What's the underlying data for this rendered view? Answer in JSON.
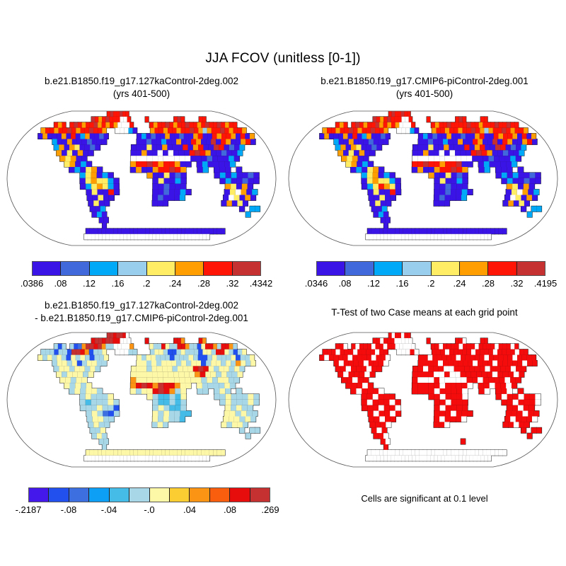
{
  "chart_data": {
    "type": "heatmap",
    "figure_title": "JJA FCOV (unitless [0-1])",
    "grid_note": "24 rows x 48 cols, equirectangular lat/lon cells, '.'=ocean, 'w'=land no-data(white), other chars keyed to palettes",
    "palettes": {
      "fcov": {
        "v": "#3A14E6",
        "b": "#4169DC",
        "c": "#00A8F8",
        "l": "#99CFEC",
        "y": "#FFED66",
        "o": "#FF9E00",
        "r": "#FF1505",
        "d": "#C53030"
      },
      "diff": {
        "V": "#4417EA",
        "B": "#2150EE",
        "m": "#3D6FE0",
        "a": "#0D9FF5",
        "s": "#45BCE8",
        "p": "#A8D8E8",
        "Y": "#FDF7A8",
        "g": "#FCCC33",
        "O": "#FB9415",
        "n": "#F85E0D",
        "R": "#E80D0D",
        "D": "#C53030"
      },
      "ttest": {
        "R": "#F40B0B"
      }
    },
    "panels": [
      {
        "position": "top-left",
        "title": "b.e21.B1850.f19_g17.127kaControl-2deg.002",
        "subtitle": "(yrs 401-500)",
        "value_range": [
          0.0386,
          0.4342
        ],
        "palette_key": "fcov",
        "colorbar": {
          "labels": [
            ".0386",
            ".08",
            ".12",
            ".16",
            ".2",
            ".24",
            ".28",
            ".32",
            ".4342"
          ],
          "colors": [
            "#3A14E6",
            "#4169DC",
            "#00A8F8",
            "#99CFEC",
            "#FFED66",
            "#FF9E00",
            "#FF1505",
            "#C53030"
          ]
        },
        "grid": [
          ".............rdrrdrr............................",
          "..........drordrrrwwr....r.......rdr....rr......",
          "..ror.rdrorrdororowwwr....rorrdrorrdrrordrrdrorr",
          ".orrorrdrorrdrro..wwwcv...orrorrorrdrolorrdrorro",
          "..vovvvovrvcovvbv......vcvbvvovvbvvorvvrorrovrvo",
          "......cvvovvvbvvv......vvbvvcvvovvrovvdvrovvorv.",
          ".......covoyvvbv......vvvyvvovvvrvorvvdrvbvc....",
          "........ovyvovv.......vvovvwvwvvvrdrovvbvvc.....",
          ".........oyovv........wwwwwwwwwwwvvvbvvvcv......",
          "..........yovcv.......orrdrorrovv.vcvvvvc.......",
          "...........vcvyov.....vovvorrdro..vc.vvv.v......",
          ".............cyovcv......ovvyvbv.....vcvcvvbv...",
          ".............vyoyycv......vyvvcv......vcvvbvv...",
          ".............vcyoycv......vvbvvv.......oyvov....",
          "..............vyvvrv......vvbvvcv......vywovc...",
          "..............vvyvv.......vbvvvc.......vwyvov...",
          "..............vyvv........vvv..........vovyv....",
          "..............vvc..........................v.cc.",
          "..............vcv............................c..",
          "...............vv...............................",
          "...............v................................",
          "..........vvvvvvvvvvvvvvvvvvvvvvvvvvvvvvvvvvv...",
          "........wwwwwwwwwwwwwwwwwwwwwwwwwwwwwwwwwww.....",
          "................................................"
        ]
      },
      {
        "position": "top-right",
        "title": "b.e21.B1850.f19_g17.CMIP6-piControl-2deg.001",
        "subtitle": "(yrs 401-500)",
        "value_range": [
          0.0346,
          0.4195
        ],
        "palette_key": "fcov",
        "colorbar": {
          "labels": [
            ".0346",
            ".08",
            ".12",
            ".16",
            ".2",
            ".24",
            ".28",
            ".32",
            ".4195"
          ],
          "colors": [
            "#3A14E6",
            "#4169DC",
            "#00A8F8",
            "#99CFEC",
            "#FFED66",
            "#FF9E00",
            "#FF1505",
            "#C53030"
          ]
        },
        "grid": [
          ".............rdrrdrr............................",
          "..........drordrrrwwr....r.......rdr....rr......",
          "..ror.rdrorrdororowwwr....rorrdrrrrdrrorrrdrrdrr",
          ".orrorrdrorrdrro..wwwcv...orrorrorrdrolorrdrorro",
          "..vovvvovrvcovvbv......vcvbvvovvbvvorvvrorrovrvo",
          "......cvvovvvbvvv......vvbvvcvvovvrovvdvrovvorv.",
          ".......covoyvvbv......vvvyvvovvvrvorvvdrvbvc....",
          "........ovyvovv.......vvovvwvwvvvrdrovvbvvc.....",
          ".........oyovv........wwwwwwwwwwwvvvbvvvcv......",
          "..........yovcv.......rrdrrorrdvv.vcvvvvc.......",
          "...........vcvyov.....vovvorrdro..vc.vvv.v......",
          ".............cyovcv......ovvyvbv.....vcvcvvbv...",
          ".............vyoyycv......vyvvcv......vcvvbvv...",
          ".............vcyroyv......vvbvvv.......oyvov....",
          "..............vyvvrv......vvbvvcv......vywovc...",
          "..............vvyvv.......vbvvvc.......vwyvov...",
          "..............vyvv........vvv..........vovyv....",
          "..............vvc..........................v.cc.",
          "..............vcv............................c..",
          "...............vv...............................",
          "...............v................................",
          "..........vvvvvvvvvvvvvvvvvvvvvvvvvvvvvvvvvvv...",
          "........wwwwwwwwwwwwwwwwwwwwwwwwwwwwwwwwwww.....",
          "................................................"
        ]
      },
      {
        "position": "bottom-left",
        "title": "b.e21.B1850.f19_g17.127kaControl-2deg.002",
        "subtitle": "- b.e21.B1850.f19_g17.CMIP6-piControl-2deg.001",
        "value_range": [
          -0.2187,
          0.269
        ],
        "palette_key": "diff",
        "colorbar": {
          "labels": [
            "-.2187",
            "-.08",
            "-.04",
            "-.0",
            ".04",
            ".08",
            ".269"
          ],
          "colors": [
            "#4417EA",
            "#2150EE",
            "#3D6FE0",
            "#0D9FF5",
            "#45BCE8",
            "#A8D8E8",
            "#FDF7A8",
            "#FCCC33",
            "#FB9415",
            "#F85E0D",
            "#E80D0D",
            "#C53030"
          ]
        },
        "grid": [
          ".............DDRDDRw............................",
          "..........RDDRDDRRwww....R.......RRO....RO......",
          "..pBp.pBmODDRDOppwwwwO....YppRYppRROppBYRROpRROp",
          ".pppBppBDDROBppY..wwwpp...pYYpBBpYpppBYYpRRYpBpY",
          "..YpYpYpBYpYpBppY......YpYYpppBpppYpBBpYpppYBppY",
          "......pYYpYBpYYpp......YYpYpYYYpYpYYBpYYpYpOYpY.",
          ".......pYYpYYpYp......YYYpYYYYpYYYRDRYpYYpYp....",
          "........YpYYYpY.......YYYYYYYYYYYYORYYpYppY.....",
          ".........YYpYY........OYYYYYYYYYYYYpYpYYpp......",
          "..........YpYpY.......ORDRODRROYY.YppppYp.......",
          "...........pYpYYp.....YpYYRDROpY..pp.pYp.p......",
          ".............pYpppY......YpsspsY.....ppYpppYp...",
          ".............pspppYp......psspsp......pYpppYp...",
          ".............pppYppB......pYpssp.......YpYpp....",
          "..............pYpmBp......YpYppss......YYpYpp...",
          "..............pYYpp.......YpYpps.......YYYpYp...",
          "..............pYpp........pYp..........YpYYp....",
          "..............ppY..........................p.pp.",
          "..............pYp............................p..",
          "...............pp...............................",
          "...............p................................",
          "..........YYYYYYYYYYYYYYYYYYYYYYYYYYYYYYYYYYY...",
          "........wwwwwwwwwwwwwwwwwwwwwwwwwwwwwwwwwww.....",
          "................................................"
        ]
      },
      {
        "position": "bottom-right",
        "title": "T-Test of two Case means at each grid point",
        "subtitle": "",
        "caption": "Cells are significant at 0.1 level",
        "palette_key": "ttest",
        "grid": [
          ".............RwRRwRR............................",
          "..........RRwRRRwwwww....R.......RRw....RR......",
          "..RRw.RwRRRwRRwRRwwwww....RRwRRRRwRRRwRRRRwRRRwR",
          ".RRRwRRRwRRRRwRR..wwwRw...RRRwRRRRRwRRRRwRRRRwRR",
          "..RwRRRRwRRRRwRRw......RRwRRRRRwRRRRRwRRRRRwRRRR",
          "......RwRRRRwRRRw......RRRRwRRRRRRwRRRwRRRRRwRR.",
          ".......RRwRRRwRR......RRwRRRwwRRRRRRwRRRRwRR....",
          "........RwRRRwR.......RRRRwwRwwRRRRRRwRRRwR.....",
          ".........RRwRR........RwwwRwwwwwRRwRRRRwRR......",
          "..........RRRwR.......RRRRRwRRRRw.RRwRRwR.......",
          "...........RwRRRw.....RRRRwRRRRw..Rw.RRw.R......",
          ".............RRwRRR......RRwRRRw.....RwRRwRRw...",
          ".............RwRRRwR......RRwRRR......RRwRRRw...",
          ".............RRRwRRw......RwRRRR.......RRwRR....",
          "..............RwRRwR......RRRwRRR......RRRwRR...",
          "..............RRwRR.......RwRRRw.......RwRRRw...",
          "..............RRRw........RRw..........RRwRR....",
          "..............RwR..........................R.RR.",
          "..............RRw............................R..",
          "...............Rw...............R...............",
          "...............R................................",
          "..........wwwwwwwwwwwwwwwwwwwwwwwwwwwwwwwwwww...",
          "........wwwwwwwwwwwwwwwwwwwwwwwwwwwwwwwwwww.....",
          "................................................"
        ]
      }
    ]
  }
}
